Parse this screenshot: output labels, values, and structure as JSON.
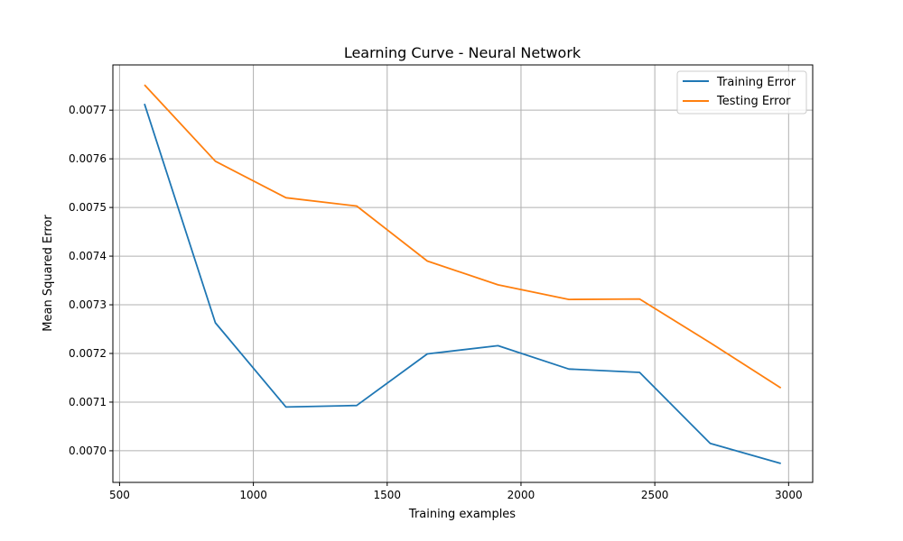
{
  "chart_data": {
    "type": "line",
    "title": "Learning Curve - Neural Network",
    "xlabel": "Training examples",
    "ylabel": "Mean Squared Error",
    "xlim": [
      475,
      3090
    ],
    "ylim": [
      0.006935,
      0.007793
    ],
    "xticks": [
      500,
      1000,
      1500,
      2000,
      2500,
      3000
    ],
    "xtick_labels": [
      "500",
      "1000",
      "1500",
      "2000",
      "2500",
      "3000"
    ],
    "yticks": [
      0.007,
      0.0071,
      0.0072,
      0.0073,
      0.0074,
      0.0075,
      0.0076,
      0.0077
    ],
    "ytick_labels": [
      "0.0070",
      "0.0071",
      "0.0072",
      "0.0073",
      "0.0074",
      "0.0075",
      "0.0076",
      "0.0077"
    ],
    "grid": true,
    "legend_position": "top-right",
    "x": [
      593,
      858,
      1122,
      1386,
      1650,
      1914,
      2179,
      2443,
      2707,
      2971
    ],
    "series": [
      {
        "name": "Training Error",
        "color": "#1f77b4",
        "values": [
          0.007713,
          0.007263,
          0.00709,
          0.007093,
          0.007199,
          0.007216,
          0.007168,
          0.007161,
          0.007015,
          0.006974
        ]
      },
      {
        "name": "Testing Error",
        "color": "#ff7f0e",
        "values": [
          0.007752,
          0.007595,
          0.00752,
          0.007503,
          0.00739,
          0.007341,
          0.007311,
          0.007312,
          0.007222,
          0.007129
        ]
      }
    ]
  }
}
